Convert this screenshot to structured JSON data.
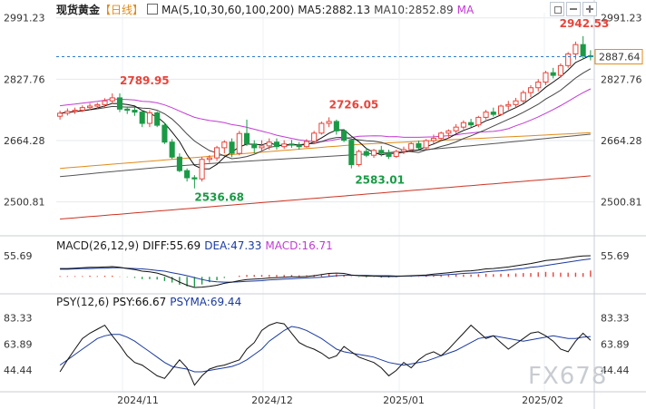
{
  "colors": {
    "up": "#e8443a",
    "down": "#1a9a46",
    "ma5": "#111111",
    "ma10": "#444444",
    "ma30": "#c23bd4",
    "ma60": "#e08a18",
    "ma100": "#555555",
    "ma200": "#cc3322",
    "diff": "#111111",
    "dea": "#1a3aa0",
    "psy": "#111111",
    "psyma": "#1a3aa0",
    "lastbox": "#e08a18"
  },
  "header": {
    "instrument": "现货黄金",
    "period": "【日线】",
    "ma_params": "MA(5,10,30,60,100,200)",
    "ma5": "MA5:2882.13",
    "ma10": "MA10:2852.89",
    "ma_more": "MA",
    "macd_params": "MACD(26,12,9)",
    "diff": "DIFF:55.69",
    "dea": "DEA:47.33",
    "macd": "MACD:16.71",
    "psy_params": "PSY(12,6)",
    "psy": "PSY:66.67",
    "psyma": "PSYMA:69.44"
  },
  "toolbar_icons": [
    "indicator-icon",
    "square-icon",
    "minus-icon",
    "plus-icon"
  ],
  "price_axis": {
    "ticks": [
      "2991.23",
      "2827.76",
      "2664.28",
      "2500.81"
    ],
    "last": "2887.64"
  },
  "macd_axis": {
    "ticks": [
      "55.69"
    ]
  },
  "psy_axis": {
    "ticks": [
      "83.33",
      "63.89",
      "44.44"
    ]
  },
  "time_axis": [
    "2024/11",
    "2024/12",
    "2025/01",
    "2025/02"
  ],
  "annotations": [
    "2789.95",
    "2726.05",
    "2942.53",
    "2536.68",
    "2583.01"
  ],
  "watermark": "FX678",
  "chart_data": {
    "type": "candlestick",
    "ylim": [
      2420,
      3005
    ],
    "candles": [
      [
        2729,
        2744,
        2720,
        2737
      ],
      [
        2737,
        2750,
        2731,
        2742
      ],
      [
        2742,
        2752,
        2735,
        2745
      ],
      [
        2745,
        2758,
        2740,
        2752
      ],
      [
        2752,
        2764,
        2745,
        2756
      ],
      [
        2756,
        2765,
        2748,
        2760
      ],
      [
        2760,
        2777,
        2752,
        2770
      ],
      [
        2770,
        2790,
        2762,
        2778
      ],
      [
        2778,
        2789.95,
        2740,
        2748
      ],
      [
        2748,
        2755,
        2735,
        2745
      ],
      [
        2745,
        2752,
        2730,
        2740
      ],
      [
        2740,
        2745,
        2700,
        2710
      ],
      [
        2710,
        2745,
        2700,
        2738
      ],
      [
        2738,
        2742,
        2700,
        2705
      ],
      [
        2705,
        2712,
        2655,
        2660
      ],
      [
        2660,
        2668,
        2615,
        2620
      ],
      [
        2620,
        2630,
        2580,
        2584
      ],
      [
        2584,
        2590,
        2555,
        2565
      ],
      [
        2565,
        2572,
        2536.68,
        2562
      ],
      [
        2562,
        2620,
        2555,
        2614
      ],
      [
        2614,
        2625,
        2605,
        2618
      ],
      [
        2618,
        2650,
        2610,
        2645
      ],
      [
        2645,
        2665,
        2630,
        2660
      ],
      [
        2660,
        2670,
        2620,
        2630
      ],
      [
        2630,
        2690,
        2625,
        2683
      ],
      [
        2683,
        2720,
        2650,
        2655
      ],
      [
        2655,
        2665,
        2630,
        2645
      ],
      [
        2645,
        2665,
        2635,
        2650
      ],
      [
        2650,
        2670,
        2640,
        2660
      ],
      [
        2660,
        2670,
        2640,
        2648
      ],
      [
        2648,
        2665,
        2642,
        2655
      ],
      [
        2655,
        2666,
        2645,
        2652
      ],
      [
        2652,
        2660,
        2640,
        2648
      ],
      [
        2648,
        2668,
        2645,
        2662
      ],
      [
        2662,
        2690,
        2655,
        2684
      ],
      [
        2684,
        2715,
        2680,
        2710
      ],
      [
        2710,
        2726.05,
        2700,
        2715
      ],
      [
        2715,
        2720,
        2680,
        2690
      ],
      [
        2690,
        2695,
        2660,
        2665
      ],
      [
        2665,
        2670,
        2590,
        2600
      ],
      [
        2600,
        2640,
        2595,
        2635
      ],
      [
        2635,
        2645,
        2620,
        2625
      ],
      [
        2625,
        2642,
        2618,
        2638
      ],
      [
        2638,
        2650,
        2622,
        2630
      ],
      [
        2630,
        2640,
        2615,
        2622
      ],
      [
        2622,
        2640,
        2618,
        2635
      ],
      [
        2635,
        2648,
        2628,
        2640
      ],
      [
        2640,
        2660,
        2636,
        2656
      ],
      [
        2656,
        2664,
        2640,
        2645
      ],
      [
        2645,
        2668,
        2640,
        2664
      ],
      [
        2664,
        2680,
        2656,
        2670
      ],
      [
        2670,
        2688,
        2662,
        2684
      ],
      [
        2684,
        2694,
        2670,
        2690
      ],
      [
        2690,
        2708,
        2684,
        2700
      ],
      [
        2700,
        2718,
        2694,
        2712
      ],
      [
        2712,
        2722,
        2700,
        2706
      ],
      [
        2706,
        2730,
        2700,
        2726
      ],
      [
        2726,
        2746,
        2720,
        2740
      ],
      [
        2740,
        2752,
        2728,
        2734
      ],
      [
        2734,
        2760,
        2730,
        2756
      ],
      [
        2756,
        2770,
        2746,
        2760
      ],
      [
        2760,
        2778,
        2752,
        2770
      ],
      [
        2770,
        2798,
        2764,
        2792
      ],
      [
        2792,
        2812,
        2780,
        2805
      ],
      [
        2805,
        2828,
        2795,
        2820
      ],
      [
        2820,
        2850,
        2812,
        2845
      ],
      [
        2845,
        2858,
        2830,
        2838
      ],
      [
        2838,
        2870,
        2832,
        2864
      ],
      [
        2864,
        2900,
        2858,
        2895
      ],
      [
        2895,
        2928,
        2880,
        2920
      ],
      [
        2920,
        2942.53,
        2880,
        2890
      ],
      [
        2890,
        2905,
        2878,
        2887.64
      ]
    ],
    "macd_ylim": [
      -40,
      70
    ],
    "diff": [
      22,
      22,
      23,
      24,
      25,
      25,
      26,
      27,
      25,
      22,
      19,
      15,
      13,
      10,
      4,
      -4,
      -14,
      -22,
      -28,
      -27,
      -25,
      -22,
      -17,
      -14,
      -10,
      -7,
      -6,
      -5,
      -3,
      -2,
      -1,
      0,
      0,
      1,
      3,
      6,
      9,
      10,
      9,
      5,
      3,
      2,
      2,
      1,
      1,
      1,
      2,
      3,
      4,
      5,
      7,
      9,
      11,
      13,
      15,
      16,
      18,
      21,
      22,
      24,
      26,
      29,
      32,
      35,
      39,
      43,
      45,
      47,
      50,
      53,
      55,
      55.69
    ],
    "dea": [
      20,
      20,
      21,
      22,
      22,
      23,
      23,
      24,
      24,
      23,
      22,
      21,
      19,
      17,
      15,
      11,
      7,
      3,
      -2,
      -7,
      -11,
      -13,
      -14,
      -14,
      -13,
      -12,
      -11,
      -10,
      -8,
      -7,
      -6,
      -5,
      -4,
      -3,
      -2,
      -1,
      1,
      3,
      4,
      4,
      4,
      4,
      3,
      3,
      3,
      2,
      2,
      2,
      3,
      3,
      4,
      5,
      6,
      7,
      9,
      10,
      11,
      13,
      15,
      16,
      18,
      20,
      22,
      25,
      27,
      30,
      33,
      36,
      39,
      42,
      45,
      47.33
    ],
    "macd_hist": [
      2,
      2,
      2,
      2,
      3,
      2,
      3,
      3,
      1,
      -1,
      -3,
      -6,
      -6,
      -7,
      -11,
      -15,
      -21,
      -25,
      -26,
      -20,
      -14,
      -9,
      -3,
      0,
      3,
      5,
      5,
      5,
      5,
      5,
      5,
      5,
      4,
      4,
      5,
      7,
      8,
      7,
      5,
      1,
      -1,
      -2,
      -1,
      -2,
      -2,
      -1,
      0,
      1,
      1,
      2,
      3,
      4,
      5,
      6,
      6,
      6,
      7,
      8,
      7,
      8,
      8,
      9,
      10,
      10,
      12,
      13,
      12,
      11,
      11,
      11,
      10,
      16.71
    ],
    "psy_ylim": [
      28,
      92
    ],
    "psy": [
      43,
      52,
      60,
      68,
      72,
      75,
      78,
      70,
      63,
      55,
      50,
      48,
      44,
      40,
      38,
      45,
      52,
      46,
      33,
      40,
      45,
      47,
      48,
      50,
      52,
      60,
      65,
      74,
      78,
      80,
      79,
      72,
      65,
      62,
      60,
      57,
      53,
      55,
      62,
      58,
      54,
      52,
      50,
      46,
      40,
      44,
      50,
      46,
      52,
      56,
      58,
      55,
      60,
      66,
      72,
      78,
      73,
      68,
      70,
      65,
      60,
      64,
      68,
      72,
      73,
      70,
      66,
      60,
      58,
      66,
      72,
      66.67
    ],
    "psyma": [
      48,
      52,
      56,
      60,
      64,
      68,
      70,
      71,
      71,
      69,
      66,
      62,
      58,
      54,
      50,
      47,
      46,
      45,
      43,
      43,
      44,
      45,
      46,
      47,
      49,
      52,
      56,
      60,
      66,
      70,
      74,
      77,
      76,
      74,
      71,
      68,
      64,
      60,
      58,
      57,
      56,
      55,
      54,
      52,
      50,
      49,
      48,
      49,
      50,
      51,
      53,
      55,
      57,
      59,
      62,
      65,
      68,
      69,
      70,
      69,
      68,
      67,
      66,
      67,
      68,
      69,
      70,
      69,
      68,
      68,
      69,
      69.44
    ]
  }
}
